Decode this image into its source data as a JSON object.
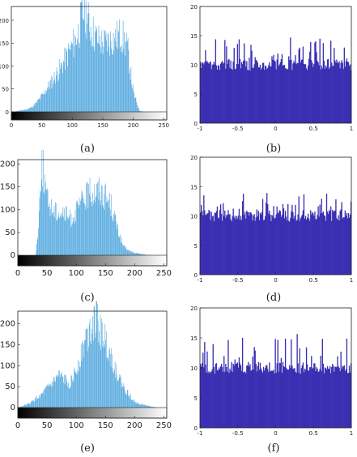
{
  "colors": {
    "hist_bar": "#4aa3dd",
    "uniform_fill": "#3b2fb2",
    "uniform_spike": "#3b2fb2",
    "axis": "#222222"
  },
  "chart_data": [
    {
      "panel": "(a)",
      "type": "bar",
      "xlim": [
        0,
        255
      ],
      "ylim": [
        0,
        230
      ],
      "xticks": [
        "0",
        "50",
        "100",
        "150",
        "200",
        "250"
      ],
      "yticks": [
        "0",
        "50",
        "100",
        "150",
        "200"
      ],
      "grayscale_colorbar": true,
      "series": [
        {
          "values_x": [
            0,
            10,
            20,
            30,
            40,
            50,
            60,
            70,
            80,
            90,
            100,
            110,
            115,
            120,
            125,
            130,
            135,
            140,
            150,
            160,
            170,
            180,
            190,
            200,
            210,
            220,
            255
          ],
          "values_y": [
            0,
            2,
            4,
            8,
            18,
            35,
            55,
            75,
            95,
            120,
            145,
            175,
            205,
            225,
            200,
            185,
            170,
            160,
            150,
            155,
            160,
            170,
            140,
            40,
            2,
            0,
            0
          ]
        }
      ]
    },
    {
      "panel": "(b)",
      "type": "bar",
      "xlim": [
        -1,
        1
      ],
      "ylim": [
        0,
        20
      ],
      "xticks": [
        "-1",
        "-0.5",
        "0",
        "0.5",
        "1"
      ],
      "yticks": [
        "0",
        "5",
        "10",
        "15",
        "20"
      ],
      "series": [
        {
          "baseline_mean": 10,
          "spike_max": 15
        }
      ]
    },
    {
      "panel": "(c)",
      "type": "bar",
      "xlim": [
        0,
        255
      ],
      "ylim": [
        0,
        210
      ],
      "xticks": [
        "0",
        "50",
        "100",
        "150",
        "200",
        "250"
      ],
      "yticks": [
        "0",
        "50",
        "100",
        "150",
        "200"
      ],
      "grayscale_colorbar": true,
      "series": [
        {
          "values_x": [
            0,
            30,
            35,
            38,
            40,
            45,
            50,
            60,
            70,
            80,
            90,
            100,
            110,
            120,
            130,
            140,
            150,
            160,
            170,
            180,
            190,
            200,
            210,
            220,
            230,
            255
          ],
          "values_y": [
            0,
            0,
            60,
            150,
            210,
            170,
            120,
            100,
            95,
            90,
            80,
            95,
            120,
            135,
            140,
            145,
            130,
            110,
            60,
            20,
            10,
            5,
            3,
            1,
            0,
            0
          ]
        }
      ]
    },
    {
      "panel": "(d)",
      "type": "bar",
      "xlim": [
        -1,
        1
      ],
      "ylim": [
        0,
        20
      ],
      "xticks": [
        "-1",
        "-0.5",
        "0",
        "0.5",
        "1"
      ],
      "yticks": [
        "0",
        "5",
        "10",
        "15",
        "20"
      ],
      "series": [
        {
          "baseline_mean": 10,
          "spike_max": 14
        }
      ]
    },
    {
      "panel": "(e)",
      "type": "bar",
      "xlim": [
        0,
        255
      ],
      "ylim": [
        0,
        230
      ],
      "xticks": [
        "0",
        "50",
        "100",
        "150",
        "200",
        "250"
      ],
      "yticks": [
        "0",
        "50",
        "100",
        "150",
        "200"
      ],
      "grayscale_colorbar": true,
      "series": [
        {
          "values_x": [
            0,
            10,
            20,
            30,
            40,
            50,
            60,
            70,
            80,
            90,
            100,
            110,
            120,
            125,
            130,
            135,
            140,
            150,
            160,
            170,
            180,
            190,
            200,
            210,
            220,
            230,
            240,
            255
          ],
          "values_y": [
            0,
            5,
            10,
            20,
            30,
            45,
            60,
            75,
            65,
            60,
            90,
            140,
            180,
            200,
            215,
            205,
            185,
            160,
            120,
            80,
            50,
            30,
            15,
            8,
            5,
            2,
            0,
            0
          ]
        }
      ]
    },
    {
      "panel": "(f)",
      "type": "bar",
      "xlim": [
        -1,
        1
      ],
      "ylim": [
        0,
        20
      ],
      "xticks": [
        "-1",
        "-0.5",
        "0",
        "0.5",
        "1"
      ],
      "yticks": [
        "0",
        "5",
        "10",
        "15",
        "20"
      ],
      "series": [
        {
          "baseline_mean": 10,
          "spike_max": 16
        }
      ]
    }
  ]
}
